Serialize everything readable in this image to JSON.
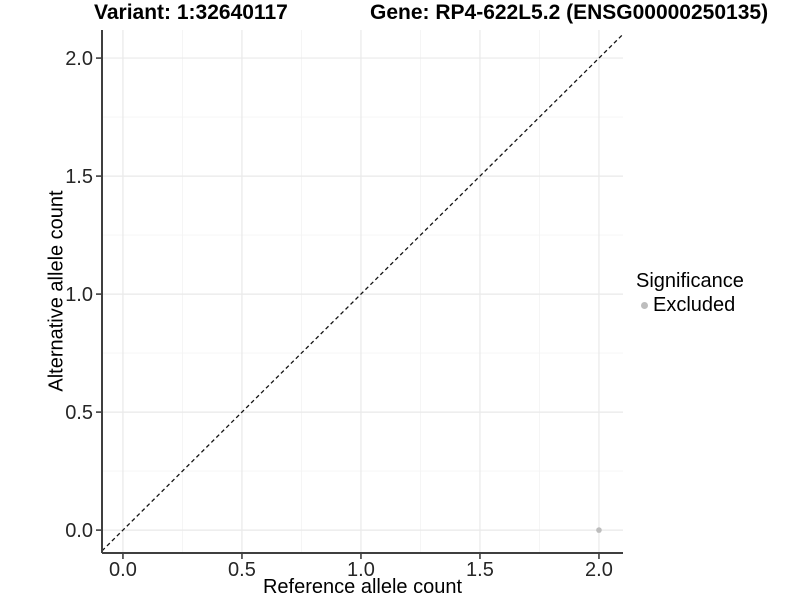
{
  "header": {
    "variant_title": "Variant: 1:32640117",
    "gene_title": "Gene: RP4-622L5.2 (ENSG00000250135)"
  },
  "legend": {
    "title": "Significance",
    "items": [
      {
        "label": "Excluded",
        "color": "#bdbdbd",
        "marker": "circle-icon"
      }
    ]
  },
  "chart_data": {
    "type": "scatter",
    "title": "Variant: 1:32640117 / Gene: RP4-622L5.2 (ENSG00000250135)",
    "xlabel": "Reference allele count",
    "ylabel": "Alternative allele count",
    "xlim": [
      -0.088,
      2.101
    ],
    "ylim": [
      -0.097,
      2.119
    ],
    "xticks": [
      0.0,
      0.5,
      1.0,
      1.5,
      2.0
    ],
    "yticks": [
      0.0,
      0.5,
      1.0,
      1.5,
      2.0
    ],
    "xtick_labels": [
      "0.0",
      "0.5",
      "1.0",
      "1.5",
      "2.0"
    ],
    "ytick_labels": [
      "0.0",
      "0.5",
      "1.0",
      "1.5",
      "2.0"
    ],
    "grid": {
      "show_major": true,
      "show_minor": true,
      "major_color": "#e9e9e9",
      "minor_color": "#f4f4f4"
    },
    "axis_color": "#3f3f3f",
    "reference_line": {
      "type": "identity",
      "style": "dashed",
      "color": "#141414"
    },
    "series": [
      {
        "name": "Excluded",
        "color": "#bdbdbd",
        "points": [
          {
            "x": 2.0,
            "y": 0.0
          }
        ]
      }
    ],
    "legend_position": "right"
  }
}
